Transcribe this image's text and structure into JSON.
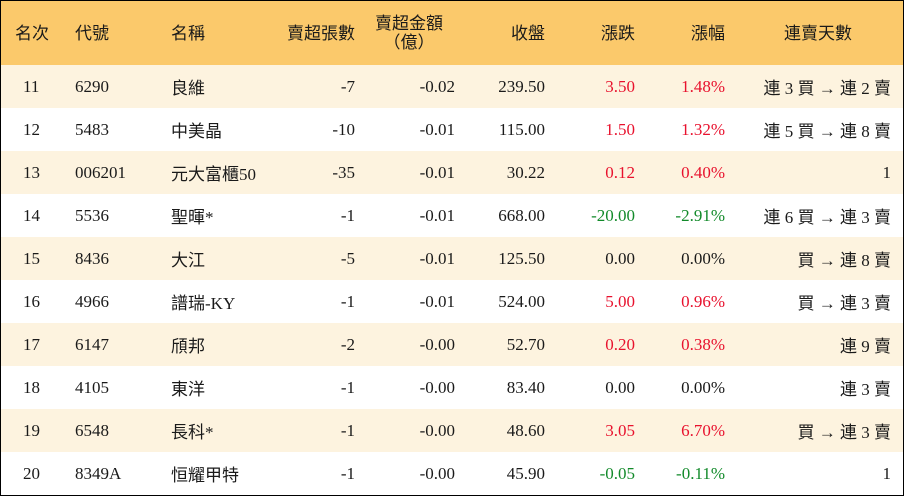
{
  "headers": {
    "rank": "名次",
    "code": "代號",
    "name": "名稱",
    "net_sell_lots": "賣超張數",
    "net_sell_amount_1": "賣超金額",
    "net_sell_amount_2": "（億）",
    "close": "收盤",
    "change": "漲跌",
    "change_pct": "漲幅",
    "streak": "連賣天數"
  },
  "colors": {
    "header_bg": "#fbc96b",
    "stripe_bg": "#fdf3df",
    "up": "#e8112d",
    "down": "#128a2a",
    "flat": "#1a1a1a"
  },
  "rows": [
    {
      "rank": "11",
      "code": "6290",
      "name": "良維",
      "lots": "-7",
      "amount": "-0.02",
      "close": "239.50",
      "change": "3.50",
      "pct": "1.48%",
      "dir": "up",
      "streak": "連 3 買 → 連 2 賣"
    },
    {
      "rank": "12",
      "code": "5483",
      "name": "中美晶",
      "lots": "-10",
      "amount": "-0.01",
      "close": "115.00",
      "change": "1.50",
      "pct": "1.32%",
      "dir": "up",
      "streak": "連 5 買 → 連 8 賣"
    },
    {
      "rank": "13",
      "code": "006201",
      "name": "元大富櫃50",
      "lots": "-35",
      "amount": "-0.01",
      "close": "30.22",
      "change": "0.12",
      "pct": "0.40%",
      "dir": "up",
      "streak": "1"
    },
    {
      "rank": "14",
      "code": "5536",
      "name": "聖暉*",
      "lots": "-1",
      "amount": "-0.01",
      "close": "668.00",
      "change": "-20.00",
      "pct": "-2.91%",
      "dir": "down",
      "streak": "連 6 買 → 連 3 賣"
    },
    {
      "rank": "15",
      "code": "8436",
      "name": "大江",
      "lots": "-5",
      "amount": "-0.01",
      "close": "125.50",
      "change": "0.00",
      "pct": "0.00%",
      "dir": "flat",
      "streak": "買 → 連 8 賣"
    },
    {
      "rank": "16",
      "code": "4966",
      "name": "譜瑞-KY",
      "lots": "-1",
      "amount": "-0.01",
      "close": "524.00",
      "change": "5.00",
      "pct": "0.96%",
      "dir": "up",
      "streak": "買 → 連 3 賣"
    },
    {
      "rank": "17",
      "code": "6147",
      "name": "頎邦",
      "lots": "-2",
      "amount": "-0.00",
      "close": "52.70",
      "change": "0.20",
      "pct": "0.38%",
      "dir": "up",
      "streak": "連 9 賣"
    },
    {
      "rank": "18",
      "code": "4105",
      "name": "東洋",
      "lots": "-1",
      "amount": "-0.00",
      "close": "83.40",
      "change": "0.00",
      "pct": "0.00%",
      "dir": "flat",
      "streak": "連 3 賣"
    },
    {
      "rank": "19",
      "code": "6548",
      "name": "長科*",
      "lots": "-1",
      "amount": "-0.00",
      "close": "48.60",
      "change": "3.05",
      "pct": "6.70%",
      "dir": "up",
      "streak": "買 → 連 3 賣"
    },
    {
      "rank": "20",
      "code": "8349A",
      "name": "恒耀甲特",
      "lots": "-1",
      "amount": "-0.00",
      "close": "45.90",
      "change": "-0.05",
      "pct": "-0.11%",
      "dir": "down",
      "streak": "1"
    }
  ]
}
